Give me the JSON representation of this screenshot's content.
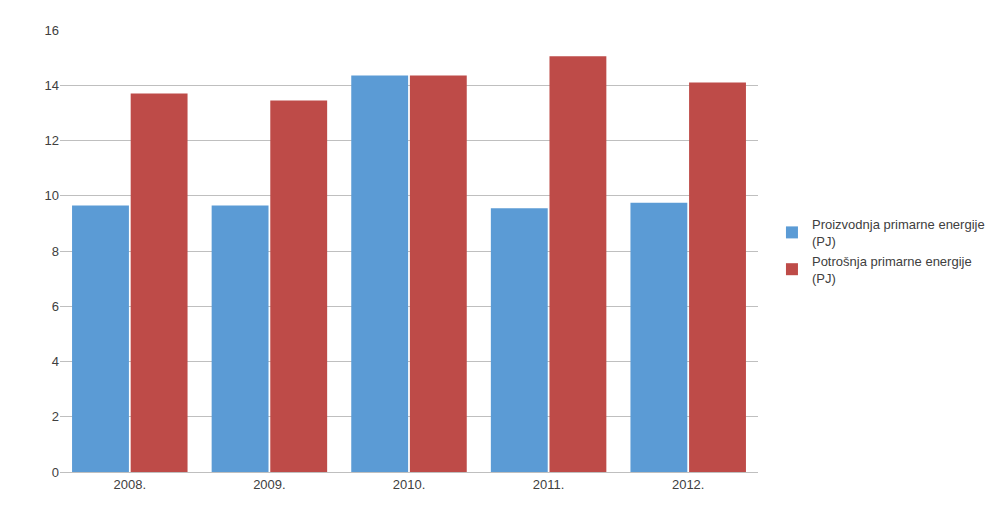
{
  "chart_data": {
    "type": "bar",
    "categories": [
      "2008.",
      "2009.",
      "2010.",
      "2011.",
      "2012."
    ],
    "series": [
      {
        "name": "Proizvodnja primarne energije\n(PJ)",
        "color": "#5B9BD5",
        "values": [
          9.65,
          9.65,
          14.35,
          9.55,
          9.75
        ]
      },
      {
        "name": "Potrošnja primarne energije\n(PJ)",
        "color": "#BE4B48",
        "values": [
          13.7,
          13.45,
          14.35,
          15.05,
          14.1
        ]
      }
    ],
    "ylim": [
      0,
      16
    ],
    "yticks": [
      0,
      2,
      4,
      6,
      8,
      10,
      12,
      14,
      16
    ],
    "grid": true,
    "legend": "right"
  }
}
